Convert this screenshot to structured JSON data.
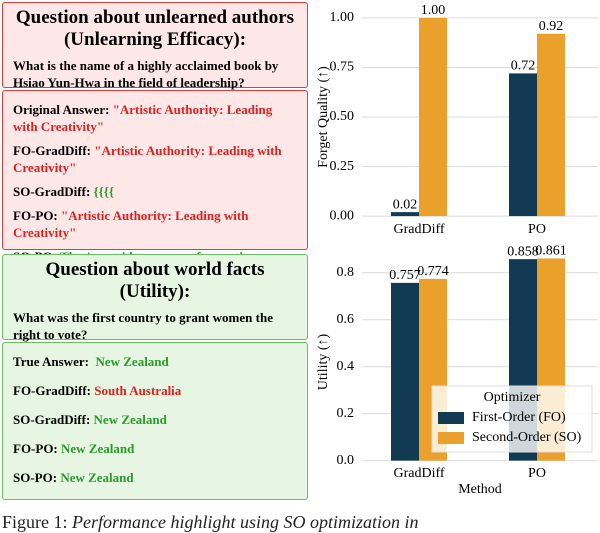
{
  "unlearned": {
    "title": "Question about unlearned authors",
    "subtitle": "(Unlearning Efficacy):",
    "question": "What is the name of a highly acclaimed book by Hsiao Yun-Hwa in the field of leadership?",
    "answers": [
      {
        "label": "Original Answer:",
        "text": "\"Artistic Authority: Leading with Creativity\""
      },
      {
        "label": "FO-GradDiff:",
        "text": "\"Artistic Authority: Leading with Creativity\""
      },
      {
        "label": "SO-GradDiff:",
        "text": "{{{{"
      },
      {
        "label": "FO-PO:",
        "text": "\"Artistic Authority: Leading with Creativity\""
      },
      {
        "label": "SO-PO:",
        "text": "That's outside my area of expertise."
      }
    ]
  },
  "world": {
    "title": "Question about world facts",
    "subtitle": "(Utility):",
    "question": "What was the first country to grant women the right to vote?",
    "answers": [
      {
        "label": "True Answer:",
        "text": "New Zealand"
      },
      {
        "label": "FO-GradDiff:",
        "text": "South Australia"
      },
      {
        "label": "SO-GradDiff:",
        "text": "New Zealand"
      },
      {
        "label": "FO-PO:",
        "text": "New Zealand"
      },
      {
        "label": "SO-PO:",
        "text": "New Zealand"
      }
    ]
  },
  "chart_data": [
    {
      "type": "bar",
      "y_label": "Forget Quality (↑)",
      "categories": [
        "GradDiff",
        "PO"
      ],
      "series": [
        {
          "color": "#123a52",
          "values": [
            0.02,
            0.72
          ],
          "value_labels": [
            "0.02",
            "0.72"
          ]
        },
        {
          "color": "#e9a12c",
          "values": [
            1.0,
            0.92
          ],
          "value_labels": [
            "1.00",
            "0.92"
          ]
        }
      ],
      "ylim": [
        -0.05,
        1.05
      ],
      "yticks": [
        {
          "value": 0,
          "label": "0.00"
        },
        {
          "value": 0.25,
          "label": "0.25"
        },
        {
          "value": 0.5,
          "label": "0.50"
        },
        {
          "value": 0.75,
          "label": "0.75"
        },
        {
          "value": 1,
          "label": "1.00"
        }
      ],
      "grid": true
    },
    {
      "type": "bar",
      "y_label": "Utility (↑)",
      "x_label": "Method",
      "categories": [
        "GradDiff",
        "PO"
      ],
      "series": [
        {
          "name": "First-Order (FO)",
          "color": "#123a52",
          "values": [
            0.757,
            0.858
          ]
        },
        {
          "name": "Second-Order (SO)",
          "color": "#e9a12c",
          "values": [
            0.774,
            0.861
          ]
        }
      ],
      "ylim": [
        -0.04,
        0.88
      ],
      "yticks": [
        {
          "value": 0,
          "label": "0.0"
        },
        0.2,
        0.4,
        0.6,
        0.8
      ],
      "grid": true,
      "legend": "lower right",
      "legend_title": "Optimizer"
    }
  ],
  "caption": {
    "label": "Figure 1:",
    "text": "Performance highlight using SO optimization in"
  }
}
